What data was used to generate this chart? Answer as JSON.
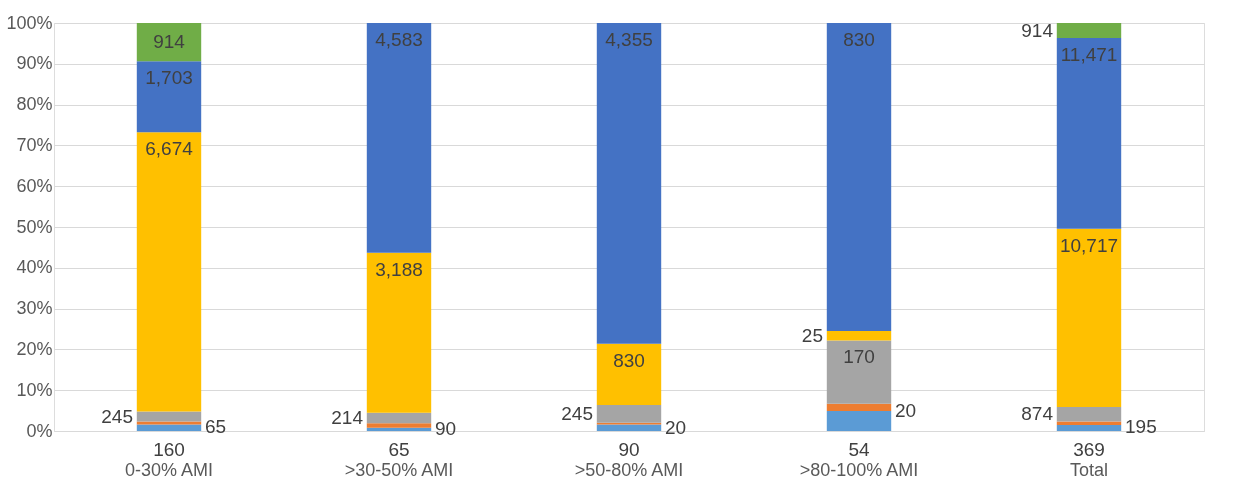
{
  "chart_data": {
    "type": "bar",
    "stacked": true,
    "categories": [
      "0-30% AMI",
      ">30-50% AMI",
      ">50-80% AMI",
      ">80-100% AMI",
      "Total"
    ],
    "series": [
      {
        "color": "#5b9bd5",
        "values": [
          1.6,
          0.8,
          1.6,
          4.9,
          1.5
        ]
      },
      {
        "color": "#ed7d31",
        "values": [
          0.7,
          1.1,
          0.4,
          1.8,
          0.8
        ]
      },
      {
        "color": "#a5a5a5",
        "values": [
          2.5,
          2.6,
          4.4,
          15.5,
          3.6
        ]
      },
      {
        "color": "#ffc000",
        "values": [
          68.4,
          39.2,
          15.0,
          2.3,
          43.7
        ]
      },
      {
        "color": "#4472c4",
        "values": [
          17.4,
          56.3,
          78.6,
          75.5,
          46.7
        ]
      },
      {
        "color": "#70ad47",
        "values": [
          9.4,
          null,
          null,
          null,
          3.7
        ]
      }
    ],
    "annotations": [
      {
        "text": "160",
        "x": "0-30% AMI",
        "y": 1.6
      },
      {
        "text": "65",
        "x": "0-30% AMI",
        "y": 2.3
      },
      {
        "text": "245",
        "x": "0-30% AMI",
        "y": 4.8
      },
      {
        "text": "6,674",
        "x": "0-30% AMI",
        "y": 73.2
      },
      {
        "text": "1,703",
        "x": "0-30% AMI",
        "y": 90.6
      },
      {
        "text": "914",
        "x": "0-30% AMI",
        "y": 100
      },
      {
        "text": "65",
        "x": ">30-50% AMI",
        "y": 0.8
      },
      {
        "text": "90",
        "x": ">30-50% AMI",
        "y": 1.9
      },
      {
        "text": "214",
        "x": ">30-50% AMI",
        "y": 4.5
      },
      {
        "text": "3,188",
        "x": ">30-50% AMI",
        "y": 43.7
      },
      {
        "text": "4,583",
        "x": ">30-50% AMI",
        "y": 100
      },
      {
        "text": "90",
        "x": ">50-80% AMI",
        "y": 1.6
      },
      {
        "text": "20",
        "x": ">50-80% AMI",
        "y": 2.0
      },
      {
        "text": "245",
        "x": ">50-80% AMI",
        "y": 6.4
      },
      {
        "text": "830",
        "x": ">50-80% AMI",
        "y": 21.4
      },
      {
        "text": "4,355",
        "x": ">50-80% AMI",
        "y": 100
      },
      {
        "text": "54",
        "x": ">80-100% AMI",
        "y": 4.9
      },
      {
        "text": "20",
        "x": ">80-100% AMI",
        "y": 6.7
      },
      {
        "text": "170",
        "x": ">80-100% AMI",
        "y": 22.2
      },
      {
        "text": "25",
        "x": ">80-100% AMI",
        "y": 24.5
      },
      {
        "text": "830",
        "x": ">80-100% AMI",
        "y": 100
      },
      {
        "text": "369",
        "x": "Total",
        "y": 1.5
      },
      {
        "text": "195",
        "x": "Total",
        "y": 2.3
      },
      {
        "text": "874",
        "x": "Total",
        "y": 5.9
      },
      {
        "text": "10,717",
        "x": "Total",
        "y": 49.6
      },
      {
        "text": "11,471",
        "x": "Total",
        "y": 96.3
      },
      {
        "text": "914",
        "x": "Total",
        "y": 100
      }
    ],
    "ylim": [
      0,
      100
    ],
    "yticks": [
      {
        "value": 0,
        "label": "0%"
      },
      {
        "value": 10,
        "label": "10%"
      },
      {
        "value": 20,
        "label": "20%"
      },
      {
        "value": 30,
        "label": "30%"
      },
      {
        "value": 40,
        "label": "40%"
      },
      {
        "value": 50,
        "label": "50%"
      },
      {
        "value": 60,
        "label": "60%"
      },
      {
        "value": 70,
        "label": "70%"
      },
      {
        "value": 80,
        "label": "80%"
      },
      {
        "value": 90,
        "label": "90%"
      },
      {
        "value": 100,
        "label": "100%"
      }
    ],
    "grid": "y"
  }
}
